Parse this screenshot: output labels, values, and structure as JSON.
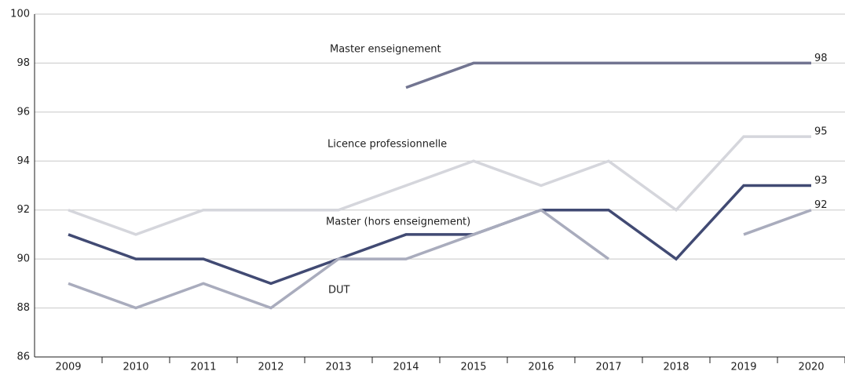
{
  "chart_data": {
    "type": "line",
    "categories": [
      "2009",
      "2010",
      "2011",
      "2012",
      "2013",
      "2014",
      "2015",
      "2016",
      "2017",
      "2018",
      "2019",
      "2020"
    ],
    "series": [
      {
        "name": "Master enseignement",
        "color": "#727591",
        "values": [
          null,
          null,
          null,
          null,
          null,
          97,
          98,
          98,
          98,
          98,
          98,
          98
        ]
      },
      {
        "name": "Licence professionnelle",
        "color": "#d5d6dc",
        "values": [
          92,
          91,
          92,
          92,
          92,
          93,
          94,
          93,
          94,
          92,
          95,
          95
        ]
      },
      {
        "name": "Master (hors enseignement)",
        "color": "#414a73",
        "values": [
          91,
          90,
          90,
          89,
          90,
          91,
          91,
          92,
          92,
          90,
          93,
          93
        ]
      },
      {
        "name": "DUT",
        "color": "#a9acbd",
        "values": [
          89,
          88,
          89,
          88,
          90,
          90,
          91,
          92,
          90,
          null,
          91,
          92
        ]
      }
    ],
    "ylim": [
      86,
      100
    ],
    "yticks": [
      86,
      88,
      90,
      92,
      94,
      96,
      98,
      100
    ],
    "grid": true
  }
}
